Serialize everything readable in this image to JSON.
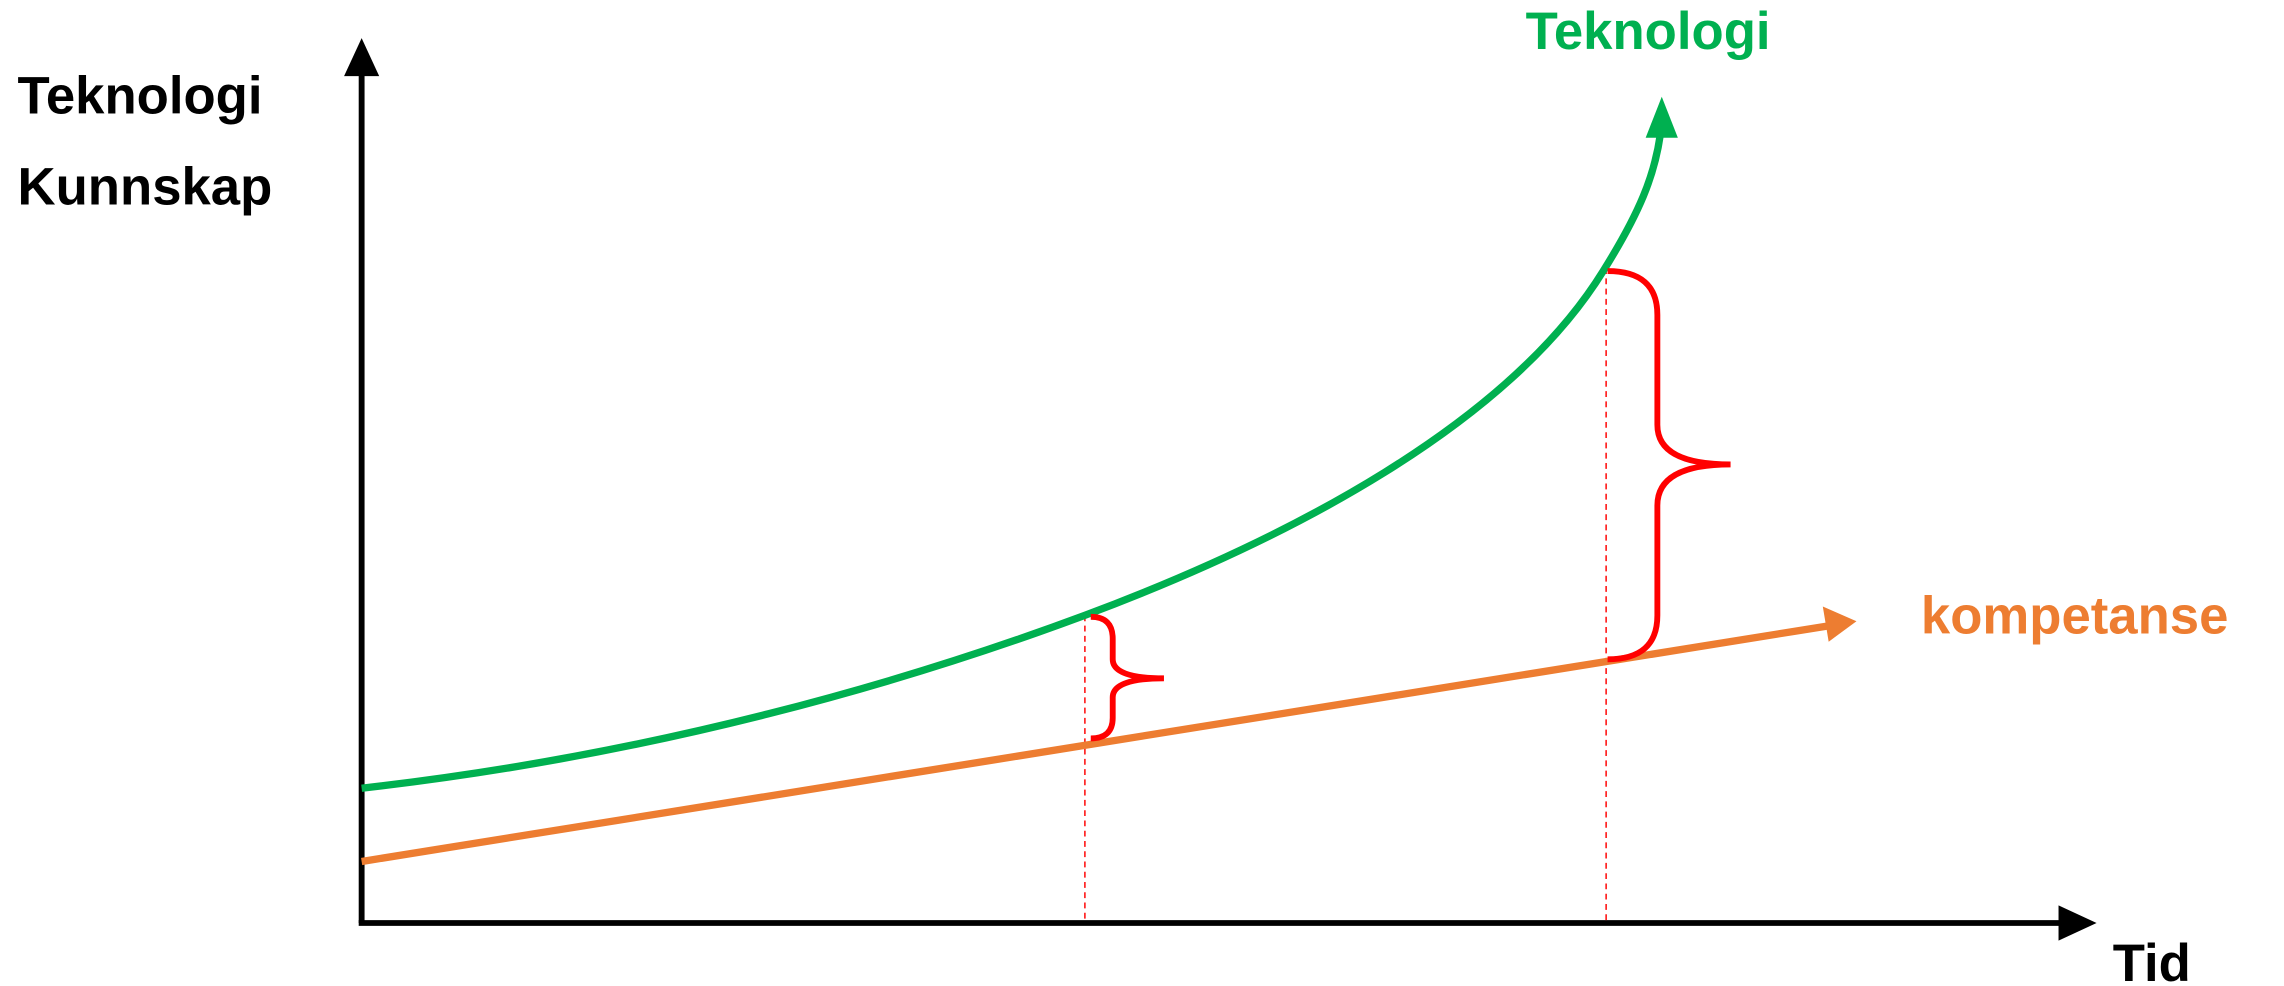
{
  "axes": {
    "y_label": [
      "Teknologi",
      "Kunnskap"
    ],
    "x_label": "Tid"
  },
  "curves": [
    {
      "label": "Teknologi"
    },
    {
      "label": "kompetanse"
    }
  ]
}
